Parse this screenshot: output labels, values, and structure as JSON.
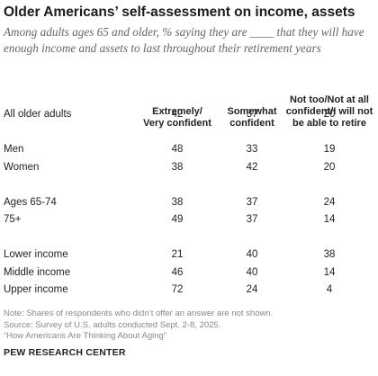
{
  "title": "Older Americans’ self-assessment on income, assets",
  "subtitle": "Among adults ages 65 and older, % saying they are ____ that they will have enough income and assets to last throughout their retirement years",
  "chart_data": {
    "type": "table",
    "columns": [
      {
        "label_lines": [
          "Extremely/",
          "Very confident"
        ]
      },
      {
        "label_lines": [
          "Somewhat",
          "confident"
        ]
      },
      {
        "label_lines": [
          "Not too/Not at all",
          "confident/I will not",
          "be able to retire"
        ]
      }
    ],
    "rows": [
      {
        "label": "All older adults",
        "values": [
          42,
          37,
          20
        ],
        "group": 0
      },
      {
        "label": "Men",
        "values": [
          48,
          33,
          19
        ],
        "group": 1
      },
      {
        "label": "Women",
        "values": [
          38,
          42,
          20
        ],
        "group": 1
      },
      {
        "label": "Ages 65-74",
        "values": [
          38,
          37,
          24
        ],
        "group": 2
      },
      {
        "label": "75+",
        "values": [
          49,
          37,
          14
        ],
        "group": 2
      },
      {
        "label": "Lower income",
        "values": [
          21,
          40,
          38
        ],
        "group": 3
      },
      {
        "label": "Middle income",
        "values": [
          46,
          40,
          14
        ],
        "group": 3
      },
      {
        "label": "Upper income",
        "values": [
          72,
          24,
          4
        ],
        "group": 3
      }
    ]
  },
  "notes": {
    "note": "Note: Shares of respondents who didn’t offer an answer are not shown.",
    "source": "Source: Survey of U.S. adults conducted Sept. 2-8, 2025.",
    "report": "“How Americans Are Thinking About Aging”"
  },
  "organization": "PEW RESEARCH CENTER"
}
